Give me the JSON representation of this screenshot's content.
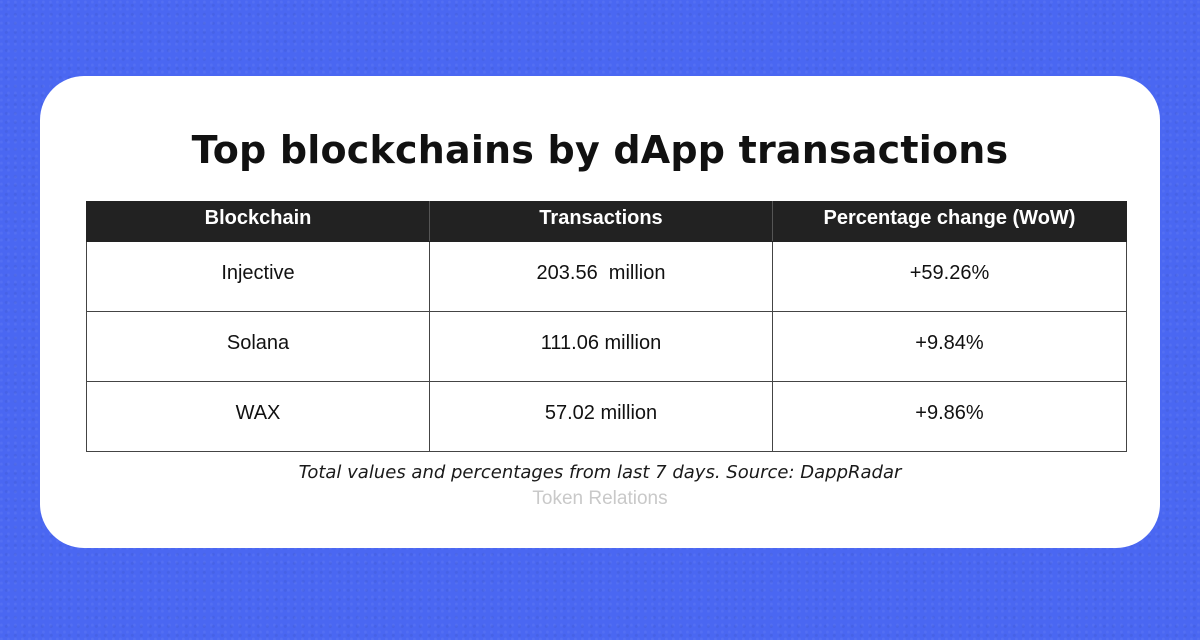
{
  "chart_data": {
    "type": "table",
    "title": "Top blockchains by dApp transactions",
    "columns": [
      "Blockchain",
      "Transactions",
      "Percentage change (WoW)"
    ],
    "rows": [
      {
        "blockchain": "Injective",
        "transactions": "203.56  million",
        "change": "+59.26%"
      },
      {
        "blockchain": "Solana",
        "transactions": "111.06 million",
        "change": "+9.84%"
      },
      {
        "blockchain": "WAX",
        "transactions": "57.02 million",
        "change": "+9.86%"
      }
    ],
    "transactions_millions": [
      203.56,
      111.06,
      57.02
    ],
    "change_percent": [
      59.26,
      9.84,
      9.86
    ],
    "caption": "Total values and percentages from last 7 days. Source: DappRadar"
  },
  "watermark": "Token Relations",
  "colors": {
    "background": "#4a67f2",
    "card": "#ffffff",
    "header_bg": "#222222",
    "header_text": "#ffffff",
    "watermark": "#c9c9c9"
  }
}
